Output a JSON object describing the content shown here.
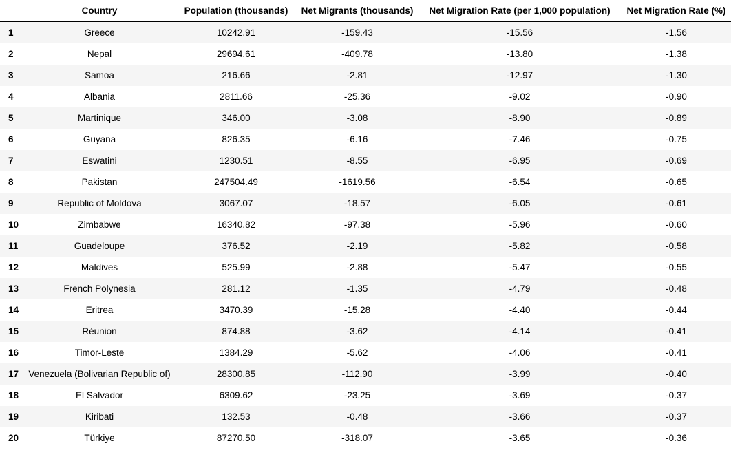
{
  "table": {
    "headers": [
      "",
      "Country",
      "Population (thousands)",
      "Net Migrants (thousands)",
      "Net Migration Rate (per 1,000 population)",
      "Net Migration Rate (%)"
    ],
    "rows": [
      [
        "1",
        "Greece",
        "10242.91",
        "-159.43",
        "-15.56",
        "-1.56"
      ],
      [
        "2",
        "Nepal",
        "29694.61",
        "-409.78",
        "-13.80",
        "-1.38"
      ],
      [
        "3",
        "Samoa",
        "216.66",
        "-2.81",
        "-12.97",
        "-1.30"
      ],
      [
        "4",
        "Albania",
        "2811.66",
        "-25.36",
        "-9.02",
        "-0.90"
      ],
      [
        "5",
        "Martinique",
        "346.00",
        "-3.08",
        "-8.90",
        "-0.89"
      ],
      [
        "6",
        "Guyana",
        "826.35",
        "-6.16",
        "-7.46",
        "-0.75"
      ],
      [
        "7",
        "Eswatini",
        "1230.51",
        "-8.55",
        "-6.95",
        "-0.69"
      ],
      [
        "8",
        "Pakistan",
        "247504.49",
        "-1619.56",
        "-6.54",
        "-0.65"
      ],
      [
        "9",
        "Republic of Moldova",
        "3067.07",
        "-18.57",
        "-6.05",
        "-0.61"
      ],
      [
        "10",
        "Zimbabwe",
        "16340.82",
        "-97.38",
        "-5.96",
        "-0.60"
      ],
      [
        "11",
        "Guadeloupe",
        "376.52",
        "-2.19",
        "-5.82",
        "-0.58"
      ],
      [
        "12",
        "Maldives",
        "525.99",
        "-2.88",
        "-5.47",
        "-0.55"
      ],
      [
        "13",
        "French Polynesia",
        "281.12",
        "-1.35",
        "-4.79",
        "-0.48"
      ],
      [
        "14",
        "Eritrea",
        "3470.39",
        "-15.28",
        "-4.40",
        "-0.44"
      ],
      [
        "15",
        "Réunion",
        "874.88",
        "-3.62",
        "-4.14",
        "-0.41"
      ],
      [
        "16",
        "Timor-Leste",
        "1384.29",
        "-5.62",
        "-4.06",
        "-0.41"
      ],
      [
        "17",
        "Venezuela (Bolivarian Republic of)",
        "28300.85",
        "-112.90",
        "-3.99",
        "-0.40"
      ],
      [
        "18",
        "El Salvador",
        "6309.62",
        "-23.25",
        "-3.69",
        "-0.37"
      ],
      [
        "19",
        "Kiribati",
        "132.53",
        "-0.48",
        "-3.66",
        "-0.37"
      ],
      [
        "20",
        "Türkiye",
        "87270.50",
        "-318.07",
        "-3.65",
        "-0.36"
      ]
    ]
  }
}
